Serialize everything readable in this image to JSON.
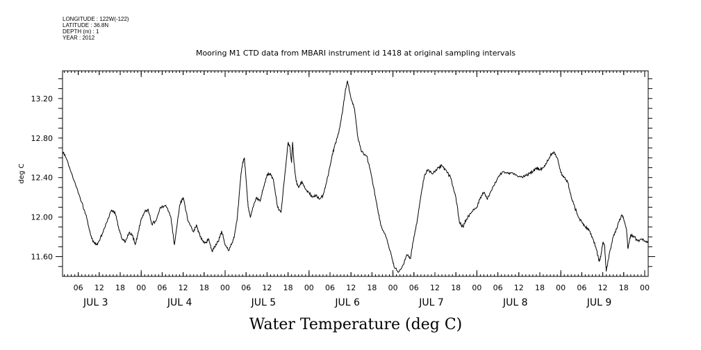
{
  "header": {
    "longitude": "LONGITUDE : 122W(-122)",
    "latitude": "LATITUDE : 36.8N",
    "depth": "DEPTH (m) : 1",
    "year": "YEAR : 2012"
  },
  "chart_data": {
    "type": "line",
    "title": "Mooring M1 CTD data from MBARI instrument id 1418 at original sampling intervals",
    "xlabel": "Water Temperature (deg C)",
    "ylabel": "deg C",
    "x_unit": "hours since 2012-07-03 00:00",
    "xlim": [
      1.5,
      169
    ],
    "ylim": [
      11.4,
      13.48
    ],
    "y_ticks": [
      11.6,
      12.0,
      12.4,
      12.8,
      13.2
    ],
    "y_tick_labels": [
      "11.60",
      "12.00",
      "12.40",
      "12.80",
      "13.20"
    ],
    "x_tick_labels": [
      {
        "h": 6,
        "label": "06"
      },
      {
        "h": 12,
        "label": "12"
      },
      {
        "h": 18,
        "label": "18"
      },
      {
        "h": 24,
        "label": "00"
      },
      {
        "h": 30,
        "label": "06"
      },
      {
        "h": 36,
        "label": "12"
      },
      {
        "h": 42,
        "label": "18"
      },
      {
        "h": 48,
        "label": "00"
      },
      {
        "h": 54,
        "label": "06"
      },
      {
        "h": 60,
        "label": "12"
      },
      {
        "h": 66,
        "label": "18"
      },
      {
        "h": 72,
        "label": "00"
      },
      {
        "h": 78,
        "label": "06"
      },
      {
        "h": 84,
        "label": "12"
      },
      {
        "h": 90,
        "label": "18"
      },
      {
        "h": 96,
        "label": "00"
      },
      {
        "h": 102,
        "label": "06"
      },
      {
        "h": 108,
        "label": "12"
      },
      {
        "h": 114,
        "label": "18"
      },
      {
        "h": 120,
        "label": "00"
      },
      {
        "h": 126,
        "label": "06"
      },
      {
        "h": 132,
        "label": "12"
      },
      {
        "h": 138,
        "label": "18"
      },
      {
        "h": 144,
        "label": "00"
      },
      {
        "h": 150,
        "label": "06"
      },
      {
        "h": 156,
        "label": "12"
      },
      {
        "h": 162,
        "label": "18"
      },
      {
        "h": 168,
        "label": "00"
      }
    ],
    "day_labels": [
      {
        "h": 11,
        "label": "JUL  3"
      },
      {
        "h": 35,
        "label": "JUL  4"
      },
      {
        "h": 59,
        "label": "JUL  5"
      },
      {
        "h": 83,
        "label": "JUL  6"
      },
      {
        "h": 107,
        "label": "JUL  7"
      },
      {
        "h": 131,
        "label": "JUL  8"
      },
      {
        "h": 155,
        "label": "JUL  9"
      }
    ],
    "grid": false,
    "legend": "none",
    "series": [
      {
        "x": [
          1.5,
          2.5,
          4,
          5.5,
          7,
          8.5,
          9.5,
          10.5,
          11.3,
          12,
          13,
          14,
          15.5,
          16.5,
          17.5,
          18.5,
          19.5,
          20.5,
          21.5,
          22.3,
          23,
          24,
          25,
          26,
          27,
          28.2,
          29.5,
          31,
          32.5,
          33.5,
          35,
          36,
          37.5,
          39,
          39.8,
          40.5,
          41.5,
          42.5,
          43.3,
          44.3,
          45,
          46,
          47,
          48,
          49,
          50,
          50.7,
          51.5,
          52.5,
          53,
          53.5,
          54,
          54.6,
          55.2,
          56,
          57,
          58,
          59,
          60,
          61,
          61.8,
          63,
          64,
          65,
          66,
          66.5,
          67,
          67.3,
          67.6,
          68,
          68.5,
          69,
          70,
          71,
          72,
          73,
          74,
          75,
          76,
          77,
          78.5,
          79.3,
          80.5,
          81.5,
          82,
          82.5,
          83,
          84,
          85,
          86,
          87,
          88.5,
          89.5,
          90.5,
          91.5,
          92.5,
          94,
          95.5,
          96.3,
          97.5,
          99,
          100,
          101,
          102,
          103,
          104,
          105,
          106,
          107.5,
          109,
          110,
          111,
          112.5,
          114,
          115,
          116,
          117,
          118.5,
          120,
          121,
          122,
          123,
          124.5,
          126,
          127.5,
          129,
          130,
          131.5,
          133,
          134,
          135,
          136,
          137,
          138,
          139,
          140,
          141,
          142,
          143,
          144,
          145,
          146,
          147,
          148,
          149,
          150,
          151,
          152,
          153,
          154,
          155,
          155.5,
          156,
          156.5,
          157,
          158,
          159,
          160,
          160.5,
          161.5,
          162,
          162.8,
          163.2,
          164,
          165,
          166,
          167,
          168,
          169
        ],
        "y": [
          12.66,
          12.6,
          12.45,
          12.3,
          12.15,
          11.98,
          11.82,
          11.74,
          11.72,
          11.76,
          11.84,
          11.94,
          12.07,
          12.05,
          11.9,
          11.78,
          11.75,
          11.84,
          11.82,
          11.72,
          11.82,
          11.98,
          12.05,
          12.08,
          11.93,
          11.96,
          12.1,
          12.12,
          12.0,
          11.72,
          12.12,
          12.2,
          11.95,
          11.85,
          11.92,
          11.84,
          11.76,
          11.74,
          11.78,
          11.65,
          11.7,
          11.75,
          11.86,
          11.72,
          11.66,
          11.74,
          11.82,
          12.0,
          12.42,
          12.55,
          12.6,
          12.38,
          12.1,
          12.0,
          12.1,
          12.2,
          12.16,
          12.3,
          12.43,
          12.44,
          12.38,
          12.1,
          12.05,
          12.4,
          12.75,
          12.72,
          12.55,
          12.76,
          12.6,
          12.45,
          12.34,
          12.3,
          12.36,
          12.28,
          12.25,
          12.2,
          12.22,
          12.18,
          12.22,
          12.35,
          12.6,
          12.72,
          12.85,
          13.05,
          13.18,
          13.3,
          13.38,
          13.2,
          13.1,
          12.8,
          12.66,
          12.62,
          12.48,
          12.3,
          12.1,
          11.92,
          11.8,
          11.62,
          11.5,
          11.44,
          11.52,
          11.62,
          11.58,
          11.8,
          11.98,
          12.22,
          12.42,
          12.48,
          12.44,
          12.5,
          12.52,
          12.48,
          12.4,
          12.2,
          11.95,
          11.9,
          11.98,
          12.05,
          12.1,
          12.2,
          12.25,
          12.18,
          12.3,
          12.4,
          12.46,
          12.44,
          12.45,
          12.42,
          12.4,
          12.42,
          12.44,
          12.46,
          12.5,
          12.48,
          12.5,
          12.55,
          12.62,
          12.66,
          12.6,
          12.45,
          12.4,
          12.35,
          12.2,
          12.1,
          12.0,
          11.95,
          11.9,
          11.88,
          11.8,
          11.7,
          11.55,
          11.62,
          11.74,
          11.72,
          11.45,
          11.65,
          11.8,
          11.88,
          11.95,
          12.02,
          11.98,
          11.88,
          11.68,
          11.82,
          11.8,
          11.76,
          11.78,
          11.76,
          11.74
        ]
      }
    ]
  }
}
